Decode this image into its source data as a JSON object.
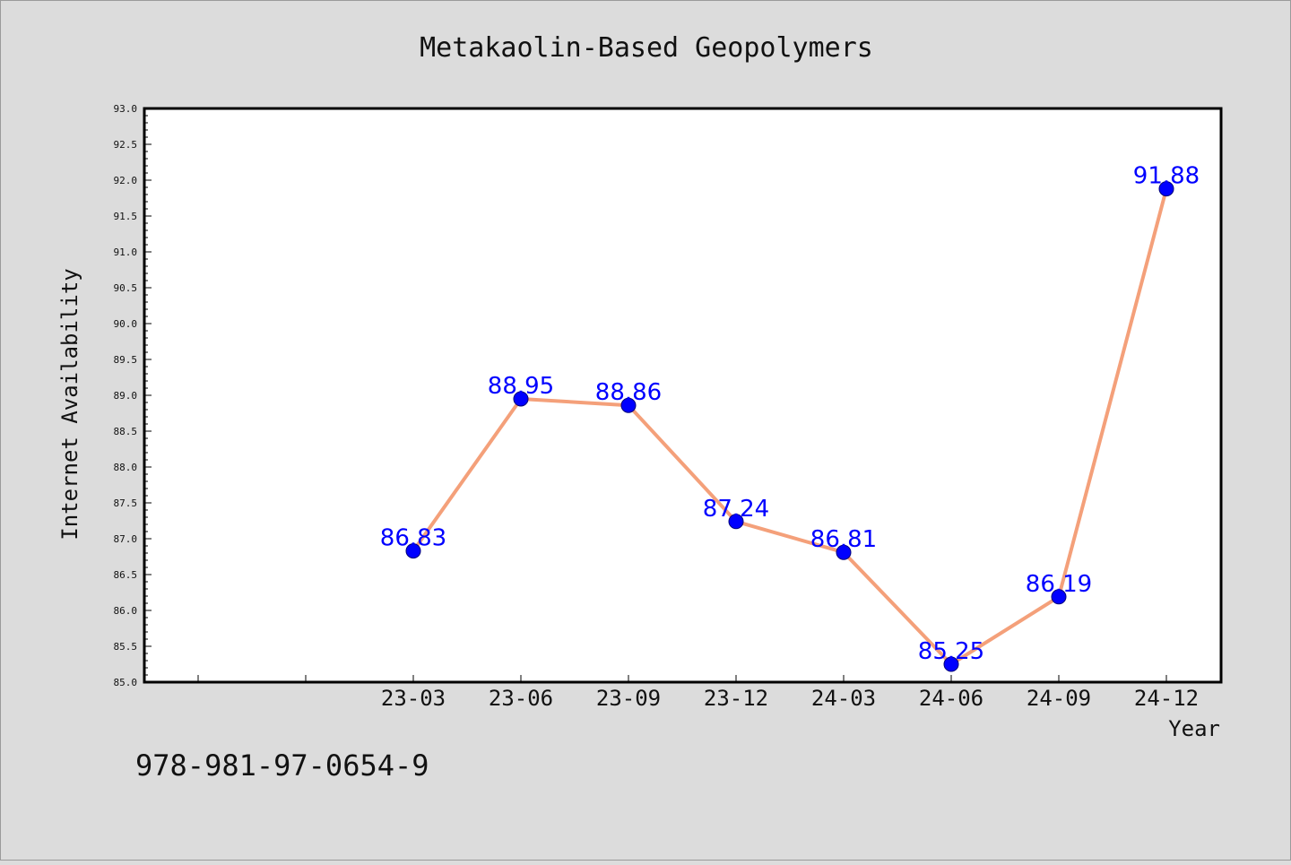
{
  "chart_data": {
    "type": "line",
    "title": "Metakaolin-Based Geopolymers",
    "xlabel": "Year",
    "ylabel": "Internet Availability",
    "categories": [
      "23-03",
      "23-06",
      "23-09",
      "23-12",
      "24-03",
      "24-06",
      "24-09",
      "24-12"
    ],
    "series": [
      {
        "values": [
          86.83,
          88.95,
          88.86,
          87.24,
          86.81,
          85.25,
          86.19,
          91.88
        ],
        "labels": [
          "86.83",
          "88.95",
          "88.86",
          "87.24",
          "86.81",
          "85.25",
          "86.19",
          "91.88"
        ]
      }
    ],
    "ylim": [
      85.0,
      93.0
    ],
    "y_ticks": [
      "85.0",
      "85.5",
      "86.0",
      "86.5",
      "87.0",
      "87.5",
      "88.0",
      "88.5",
      "89.0",
      "89.5",
      "90.0",
      "90.5",
      "91.0",
      "91.5",
      "92.0",
      "92.5",
      "93.0"
    ],
    "grid": false,
    "legend": "none",
    "colors": {
      "line": "#f4a07a",
      "marker": "#0000ff",
      "label": "#0000ff",
      "plot_bg": "#ffffff",
      "page_bg": "#dcdcdc"
    }
  },
  "footer": {
    "code": "978-981-97-0654-9"
  }
}
